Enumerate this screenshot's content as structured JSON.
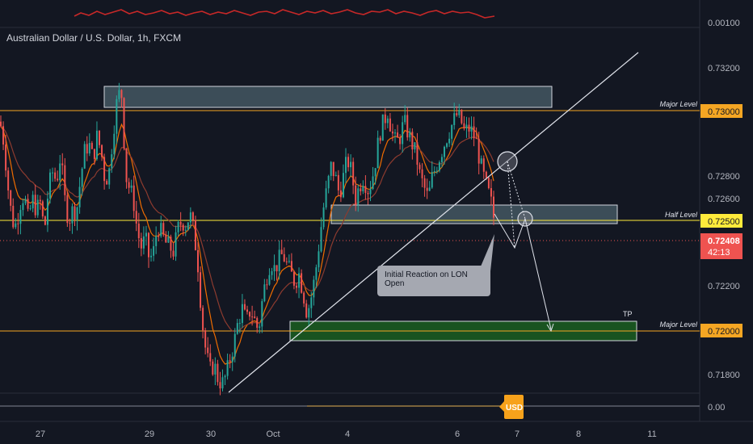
{
  "header": {
    "title": "Australian Dollar / U.S. Dollar, 1h, FXCM"
  },
  "annotations": {
    "note": "Initial Reaction on LON Open",
    "tp": "TP",
    "major_level_label": "Major Level",
    "half_level_label": "Half Level"
  },
  "price_axis": {
    "indicator_top_tick": "0.00100",
    "ticks": [
      "0.73200",
      "0.72800",
      "0.72600",
      "0.72200",
      "0.71800"
    ],
    "level_labels": [
      "0.73000",
      "0.72500",
      "0.72000"
    ],
    "current_price": "0.72408",
    "countdown": "42:13",
    "indicator_bottom_tick": "0.00"
  },
  "time_axis": {
    "ticks": [
      "27",
      "29",
      "30",
      "Oct",
      "4",
      "6",
      "7",
      "8",
      "11"
    ]
  },
  "currency_badge": "USD",
  "colors": {
    "background": "#131722",
    "up_candle": "#26a69a",
    "down_candle": "#ef5350",
    "major_level": "#f5a623",
    "half_level": "#ffeb3b",
    "tp_zone": "#1b5e20",
    "resistance_zone": "#5f7a85",
    "current_price_badge": "#ef5350",
    "usd_badge": "#f7a21b"
  },
  "chart_data": {
    "type": "candlestick",
    "title": "Australian Dollar / U.S. Dollar, 1h, FXCM",
    "ylim": [
      0.7168,
      0.7337
    ],
    "x_ticks": [
      "27",
      "29",
      "30",
      "Oct",
      "4",
      "6",
      "7",
      "8",
      "11"
    ],
    "horizontal_levels": [
      {
        "label": "Major Level",
        "value": 0.73
      },
      {
        "label": "Half Level",
        "value": 0.725
      },
      {
        "label": "Major Level",
        "value": 0.72
      }
    ],
    "current_price": 0.72408,
    "price_path": [
      [
        0,
        0.7295
      ],
      [
        5,
        0.7285
      ],
      [
        10,
        0.7265
      ],
      [
        15,
        0.725
      ],
      [
        20,
        0.7248
      ],
      [
        25,
        0.7258
      ],
      [
        30,
        0.7262
      ],
      [
        35,
        0.725
      ],
      [
        40,
        0.726
      ],
      [
        45,
        0.7255
      ],
      [
        50,
        0.7258
      ],
      [
        55,
        0.7245
      ],
      [
        60,
        0.7265
      ],
      [
        65,
        0.7272
      ],
      [
        70,
        0.7268
      ],
      [
        75,
        0.728
      ],
      [
        80,
        0.726
      ],
      [
        85,
        0.725
      ],
      [
        90,
        0.7255
      ],
      [
        95,
        0.7255
      ],
      [
        100,
        0.727
      ],
      [
        105,
        0.7282
      ],
      [
        110,
        0.7285
      ],
      [
        115,
        0.7278
      ],
      [
        120,
        0.7288
      ],
      [
        125,
        0.7282
      ],
      [
        130,
        0.7268
      ],
      [
        135,
        0.7272
      ],
      [
        140,
        0.729
      ],
      [
        145,
        0.7305
      ],
      [
        150,
        0.731
      ],
      [
        153,
        0.729
      ],
      [
        156,
        0.727
      ],
      [
        160,
        0.7265
      ],
      [
        165,
        0.726
      ],
      [
        170,
        0.7245
      ],
      [
        175,
        0.7238
      ],
      [
        180,
        0.7242
      ],
      [
        185,
        0.7232
      ],
      [
        190,
        0.7236
      ],
      [
        195,
        0.7248
      ],
      [
        200,
        0.7244
      ],
      [
        205,
        0.724
      ],
      [
        210,
        0.7238
      ],
      [
        215,
        0.7236
      ],
      [
        220,
        0.7246
      ],
      [
        225,
        0.725
      ],
      [
        230,
        0.7248
      ],
      [
        235,
        0.7253
      ],
      [
        240,
        0.7245
      ],
      [
        245,
        0.723
      ],
      [
        250,
        0.7205
      ],
      [
        255,
        0.719
      ],
      [
        260,
        0.7182
      ],
      [
        265,
        0.7185
      ],
      [
        270,
        0.7178
      ],
      [
        275,
        0.7176
      ],
      [
        280,
        0.718
      ],
      [
        285,
        0.7188
      ],
      [
        290,
        0.7195
      ],
      [
        295,
        0.7205
      ],
      [
        300,
        0.721
      ],
      [
        305,
        0.7204
      ],
      [
        310,
        0.721
      ],
      [
        315,
        0.7205
      ],
      [
        320,
        0.72
      ],
      [
        325,
        0.7215
      ],
      [
        330,
        0.7225
      ],
      [
        335,
        0.7232
      ],
      [
        340,
        0.7228
      ],
      [
        345,
        0.7232
      ],
      [
        350,
        0.7235
      ],
      [
        355,
        0.723
      ],
      [
        360,
        0.7226
      ],
      [
        365,
        0.7222
      ],
      [
        370,
        0.7226
      ],
      [
        375,
        0.7218
      ],
      [
        380,
        0.7208
      ],
      [
        385,
        0.7215
      ],
      [
        390,
        0.7225
      ],
      [
        395,
        0.724
      ],
      [
        400,
        0.7255
      ],
      [
        405,
        0.7265
      ],
      [
        410,
        0.7275
      ],
      [
        415,
        0.727
      ],
      [
        420,
        0.7262
      ],
      [
        425,
        0.727
      ],
      [
        430,
        0.7278
      ],
      [
        435,
        0.7272
      ],
      [
        440,
        0.726
      ],
      [
        445,
        0.7266
      ],
      [
        450,
        0.727
      ],
      [
        455,
        0.7264
      ],
      [
        460,
        0.7268
      ],
      [
        465,
        0.7278
      ],
      [
        470,
        0.729
      ],
      [
        475,
        0.7295
      ],
      [
        480,
        0.73
      ],
      [
        485,
        0.729
      ],
      [
        490,
        0.7285
      ],
      [
        495,
        0.7288
      ],
      [
        500,
        0.7295
      ],
      [
        505,
        0.729
      ],
      [
        510,
        0.7285
      ],
      [
        515,
        0.728
      ],
      [
        520,
        0.727
      ],
      [
        525,
        0.7265
      ],
      [
        530,
        0.726
      ],
      [
        535,
        0.727
      ],
      [
        540,
        0.7275
      ],
      [
        545,
        0.728
      ],
      [
        550,
        0.7285
      ],
      [
        555,
        0.729
      ],
      [
        560,
        0.7294
      ],
      [
        565,
        0.7298
      ],
      [
        570,
        0.7296
      ],
      [
        575,
        0.729
      ],
      [
        580,
        0.7292
      ],
      [
        585,
        0.729
      ],
      [
        590,
        0.7285
      ],
      [
        595,
        0.7275
      ],
      [
        600,
        0.7268
      ],
      [
        605,
        0.7262
      ],
      [
        610,
        0.7255
      ],
      [
        613,
        0.7245
      ]
    ]
  }
}
